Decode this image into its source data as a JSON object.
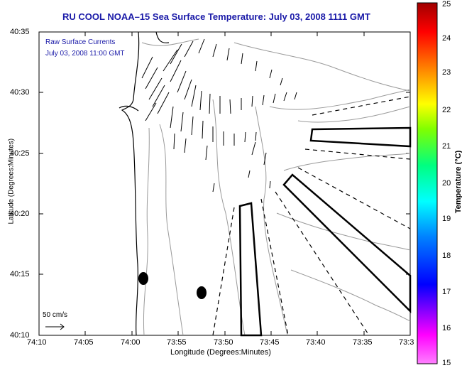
{
  "title": "RU COOL  NOAA–15  Sea Surface Temperature:  July 03, 2008 1111 GMT",
  "legend": {
    "line1": "Raw Surface Currents",
    "line2": "July 03, 2008 11:00 GMT"
  },
  "scale_label": "50 cm/s",
  "axis": {
    "x_title": "Longitude (Degrees:Minutes)",
    "y_title": "Latitude (Degrees:Minutes)",
    "x_ticks": [
      "74:10",
      "74:05",
      "74:00",
      "73:55",
      "73:50",
      "73:45",
      "73:40",
      "73:35",
      "73:3"
    ],
    "y_ticks": [
      "40:35",
      "40:30",
      "40:25",
      "40:20",
      "40:15",
      "40:10"
    ]
  },
  "colorbar": {
    "title": "Temperature (°C)",
    "ticks": [
      "25",
      "24",
      "23",
      "22",
      "21",
      "20",
      "19",
      "18",
      "17",
      "16",
      "15"
    ]
  },
  "colors": {
    "title": "#1a1aa8",
    "contour": "#9a9a9a",
    "coast": "#000000"
  }
}
